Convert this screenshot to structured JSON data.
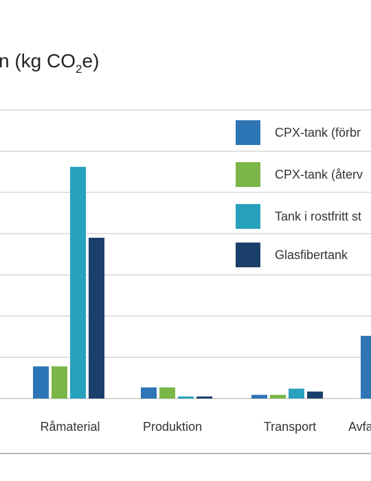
{
  "chart_data": {
    "type": "bar",
    "title_visible": "n (kg CO",
    "title_subscript": "2",
    "title_suffix": "e)",
    "categories": [
      "Råmaterial",
      "Produktion",
      "Transport",
      "Avfa"
    ],
    "series": [
      {
        "name": "CPX-tank (förbr",
        "color": "#2e75b6",
        "values": [
          0.78,
          0.27,
          0.09,
          1.52
        ]
      },
      {
        "name": "CPX-tank (återv",
        "color": "#7ab648",
        "values": [
          0.78,
          0.27,
          0.09,
          null
        ]
      },
      {
        "name": "Tank i rostfritt st",
        "color": "#27a1bd",
        "values": [
          5.62,
          0.05,
          0.24,
          null
        ]
      },
      {
        "name": "Glasfibertank",
        "color": "#1b3f6b",
        "values": [
          3.9,
          0.05,
          0.17,
          null
        ]
      }
    ],
    "ylim": [
      0,
      7
    ],
    "grid": true,
    "gridline_color": "#cfcfcf",
    "legend_position": "right"
  }
}
